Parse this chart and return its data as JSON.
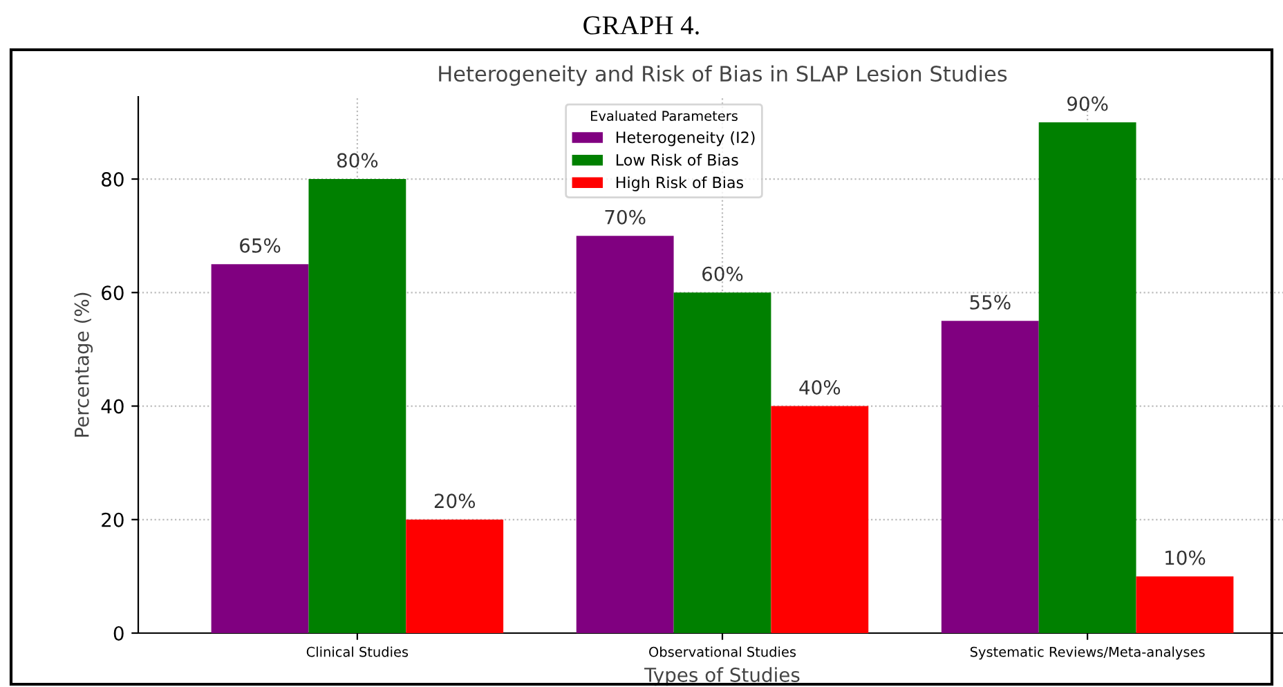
{
  "chart_data": {
    "type": "bar",
    "title": "Heterogeneity and Risk of Bias in SLAP Lesion Studies",
    "annotations": [
      "GRAPH 4."
    ],
    "xlabel": "Types of Studies",
    "ylabel": "Percentage (%)",
    "legend_title": "Evaluated Parameters",
    "legend": "top",
    "grid": true,
    "categories": [
      "Clinical Studies",
      "Observational Studies",
      "Systematic Reviews/Meta-analyses"
    ],
    "series": [
      {
        "name": "Heterogeneity (I2)",
        "color": "#800080",
        "values": [
          65,
          70,
          55
        ],
        "value_labels": [
          "65%",
          "70%",
          "55%"
        ]
      },
      {
        "name": "Low Risk of Bias",
        "color": "#008000",
        "values": [
          80,
          60,
          90
        ],
        "value_labels": [
          "80%",
          "60%",
          "90%"
        ]
      },
      {
        "name": "High Risk of Bias",
        "color": "#ff0000",
        "values": [
          20,
          40,
          10
        ],
        "value_labels": [
          "20%",
          "40%",
          "10%"
        ]
      }
    ],
    "ylim": [
      0,
      94.5
    ],
    "yticks": [
      0,
      20,
      40,
      60,
      80
    ]
  }
}
